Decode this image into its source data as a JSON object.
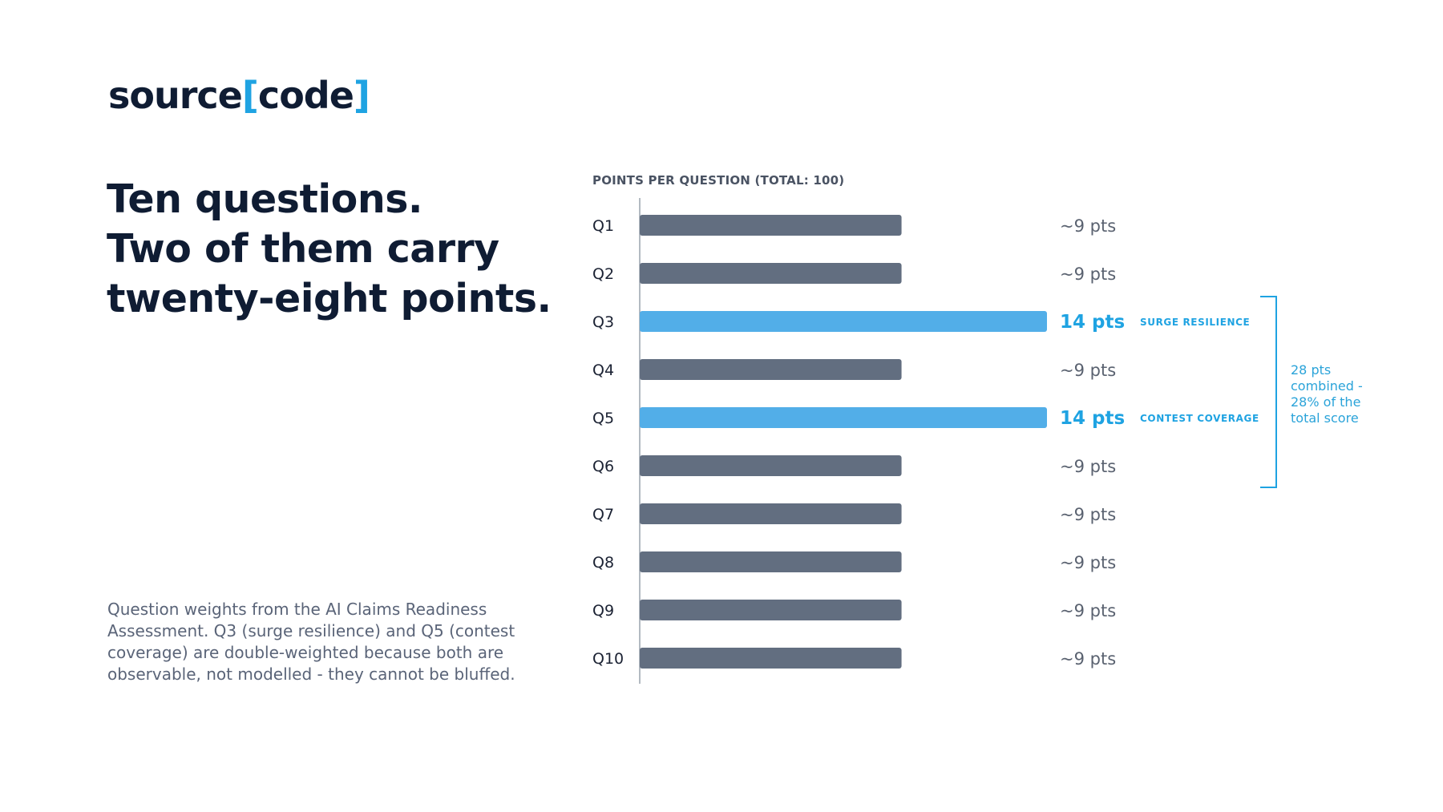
{
  "logo": {
    "part1": "source",
    "open": "[",
    "part2": "code",
    "close": "]"
  },
  "headline": [
    "Ten questions.",
    "Two of them carry",
    "twenty-eight points."
  ],
  "caption": "Question weights from the AI Claims Readiness Assessment. Q3 (surge resilience) and Q5 (contest coverage) are double-weighted because both are observable, not modelled - they cannot be bluffed.",
  "colors": {
    "bar": "#626e80",
    "highlight": "#52aee8",
    "accent": "#1fa3e2",
    "axis": "#9aa3ae"
  },
  "chart_data": {
    "type": "bar",
    "orientation": "horizontal",
    "title": "POINTS PER QUESTION (TOTAL: 100)",
    "categories": [
      "Q1",
      "Q2",
      "Q3",
      "Q4",
      "Q5",
      "Q6",
      "Q7",
      "Q8",
      "Q9",
      "Q10"
    ],
    "values": [
      9,
      9,
      14,
      9,
      14,
      9,
      9,
      9,
      9,
      9
    ],
    "value_labels": [
      "~9 pts",
      "~9 pts",
      "14 pts",
      "~9 pts",
      "14 pts",
      "~9 pts",
      "~9 pts",
      "~9 pts",
      "~9 pts",
      "~9 pts"
    ],
    "highlighted": [
      false,
      false,
      true,
      false,
      true,
      false,
      false,
      false,
      false,
      false
    ],
    "tags": [
      "",
      "",
      "SURGE RESILIENCE",
      "",
      "CONTEST COVERAGE",
      "",
      "",
      "",
      "",
      ""
    ],
    "xlim": [
      0,
      14
    ],
    "annotation": [
      "28 pts",
      "combined -",
      "28% of the",
      "total score"
    ]
  }
}
